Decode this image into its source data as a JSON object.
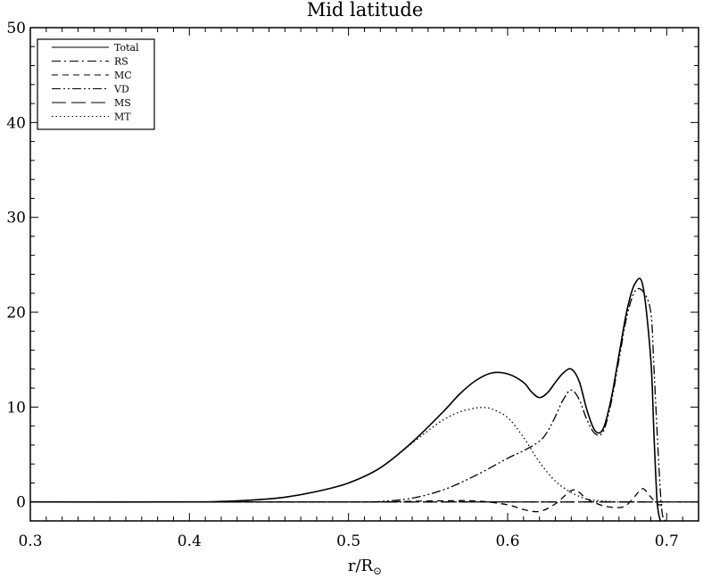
{
  "chart_data": {
    "type": "line",
    "title": "Mid latitude",
    "xlabel": "r/R",
    "xlabel_sub": "⊙",
    "ylabel": "",
    "xlim": [
      0.3,
      0.72
    ],
    "ylim": [
      -2,
      50
    ],
    "xticks": [
      0.3,
      0.4,
      0.5,
      0.6,
      0.7
    ],
    "xtick_labels": [
      "0.3",
      "0.4",
      "0.5",
      "0.6",
      "0.7"
    ],
    "yticks": [
      0,
      10,
      20,
      30,
      40,
      50
    ],
    "ytick_labels": [
      "0",
      "10",
      "20",
      "30",
      "40",
      "50"
    ],
    "grid": false,
    "legend_position": "top-left",
    "series": [
      {
        "name": "Total",
        "style": "solid",
        "x": [
          0.3,
          0.4,
          0.42,
          0.44,
          0.46,
          0.48,
          0.5,
          0.52,
          0.54,
          0.56,
          0.57,
          0.58,
          0.59,
          0.6,
          0.61,
          0.615,
          0.62,
          0.625,
          0.63,
          0.635,
          0.64,
          0.645,
          0.65,
          0.655,
          0.66,
          0.665,
          0.67,
          0.675,
          0.68,
          0.685,
          0.69,
          0.692,
          0.694,
          0.696
        ],
        "y": [
          0,
          0,
          0.05,
          0.2,
          0.5,
          1.1,
          2.0,
          3.6,
          6.3,
          9.6,
          11.4,
          12.8,
          13.6,
          13.5,
          12.6,
          11.6,
          11.0,
          11.5,
          12.6,
          13.6,
          14.0,
          12.7,
          9.6,
          7.5,
          7.7,
          10.8,
          15.5,
          20.2,
          23.0,
          22.8,
          15.0,
          7.0,
          0.0,
          -2.0
        ]
      },
      {
        "name": "RS",
        "style": "dash-dot",
        "x": [
          0.3,
          0.5,
          0.55,
          0.6,
          0.65,
          0.69,
          0.7,
          0.72
        ],
        "y": [
          0,
          0,
          0,
          0,
          0,
          0,
          0,
          0
        ]
      },
      {
        "name": "MC",
        "style": "dashed",
        "x": [
          0.3,
          0.5,
          0.55,
          0.58,
          0.6,
          0.61,
          0.62,
          0.63,
          0.64,
          0.645,
          0.65,
          0.66,
          0.67,
          0.675,
          0.68,
          0.685,
          0.69,
          0.695,
          0.7
        ],
        "y": [
          0,
          0,
          0.1,
          0.1,
          -0.3,
          -0.8,
          -1.0,
          -0.2,
          1.2,
          1.0,
          0.3,
          -0.4,
          -0.6,
          -0.3,
          0.6,
          1.4,
          0.5,
          -0.3,
          0
        ]
      },
      {
        "name": "VD",
        "style": "dash-dot-dot",
        "x": [
          0.3,
          0.5,
          0.52,
          0.54,
          0.56,
          0.58,
          0.6,
          0.61,
          0.62,
          0.625,
          0.63,
          0.635,
          0.64,
          0.645,
          0.65,
          0.655,
          0.66,
          0.665,
          0.67,
          0.675,
          0.68,
          0.685,
          0.69,
          0.692,
          0.695,
          0.697,
          0.699
        ],
        "y": [
          0,
          0,
          0.05,
          0.4,
          1.3,
          2.8,
          4.6,
          5.4,
          6.4,
          7.4,
          9.0,
          10.8,
          11.8,
          10.8,
          8.6,
          7.2,
          7.4,
          10.4,
          15.0,
          19.6,
          22.2,
          22.2,
          20.0,
          14.0,
          4.0,
          -1.0,
          -2.0
        ]
      },
      {
        "name": "MS",
        "style": "long-dash",
        "x": [
          0.3,
          0.5,
          0.6,
          0.65,
          0.69,
          0.7,
          0.72
        ],
        "y": [
          0,
          0,
          0,
          0,
          0,
          0,
          0
        ]
      },
      {
        "name": "MT",
        "style": "dotted",
        "x": [
          0.3,
          0.4,
          0.42,
          0.44,
          0.46,
          0.48,
          0.5,
          0.52,
          0.54,
          0.55,
          0.56,
          0.57,
          0.58,
          0.585,
          0.59,
          0.6,
          0.61,
          0.62,
          0.63,
          0.64,
          0.65,
          0.66,
          0.67,
          0.68
        ],
        "y": [
          0,
          0,
          0.05,
          0.2,
          0.5,
          1.1,
          2.0,
          3.6,
          6.2,
          7.5,
          8.7,
          9.5,
          9.9,
          9.95,
          9.8,
          8.9,
          6.8,
          4.2,
          2.2,
          1.0,
          0.3,
          0.1,
          0.0,
          0.0
        ]
      }
    ]
  }
}
